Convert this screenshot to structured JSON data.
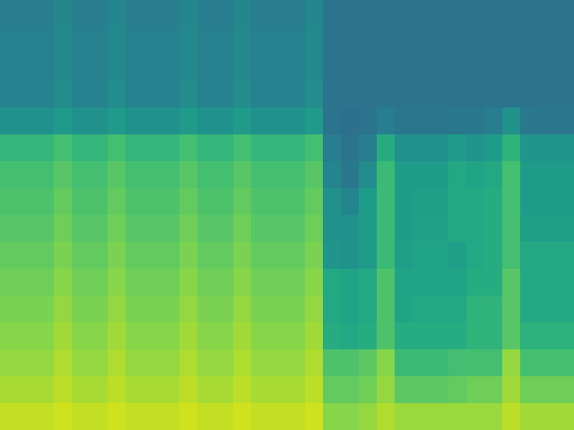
{
  "chart_data": {
    "type": "heatmap",
    "color": "Viridis",
    "tick_labels": false,
    "zlim": [
      0,
      1
    ],
    "cells": [
      [
        0.42,
        0.42,
        0.42,
        0.46,
        0.42,
        0.42,
        0.46,
        0.42,
        0.42,
        0.42,
        0.46,
        0.42,
        0.42,
        0.46,
        0.42,
        0.42,
        0.42,
        0.46,
        0.38,
        0.38,
        0.38,
        0.38,
        0.38,
        0.38,
        0.38,
        0.38,
        0.38,
        0.38,
        0.38,
        0.38,
        0.38,
        0.38
      ],
      [
        0.43,
        0.43,
        0.43,
        0.47,
        0.43,
        0.43,
        0.47,
        0.43,
        0.43,
        0.43,
        0.47,
        0.43,
        0.43,
        0.47,
        0.43,
        0.43,
        0.43,
        0.47,
        0.38,
        0.38,
        0.38,
        0.38,
        0.38,
        0.38,
        0.38,
        0.38,
        0.38,
        0.38,
        0.38,
        0.38,
        0.38,
        0.38
      ],
      [
        0.43,
        0.43,
        0.43,
        0.47,
        0.43,
        0.43,
        0.47,
        0.43,
        0.43,
        0.43,
        0.47,
        0.43,
        0.43,
        0.47,
        0.43,
        0.43,
        0.43,
        0.47,
        0.38,
        0.38,
        0.38,
        0.38,
        0.38,
        0.38,
        0.38,
        0.38,
        0.38,
        0.38,
        0.38,
        0.38,
        0.38,
        0.38
      ],
      [
        0.44,
        0.44,
        0.44,
        0.48,
        0.44,
        0.44,
        0.48,
        0.44,
        0.44,
        0.44,
        0.48,
        0.44,
        0.44,
        0.48,
        0.44,
        0.44,
        0.44,
        0.48,
        0.38,
        0.38,
        0.38,
        0.38,
        0.38,
        0.38,
        0.38,
        0.38,
        0.38,
        0.38,
        0.38,
        0.38,
        0.38,
        0.38
      ],
      [
        0.5,
        0.5,
        0.5,
        0.54,
        0.5,
        0.5,
        0.54,
        0.5,
        0.5,
        0.5,
        0.54,
        0.5,
        0.5,
        0.54,
        0.5,
        0.5,
        0.5,
        0.54,
        0.38,
        0.37,
        0.38,
        0.42,
        0.39,
        0.39,
        0.39,
        0.4,
        0.4,
        0.42,
        0.5,
        0.4,
        0.39,
        0.39
      ],
      [
        0.66,
        0.66,
        0.66,
        0.7,
        0.66,
        0.66,
        0.7,
        0.66,
        0.66,
        0.66,
        0.7,
        0.66,
        0.66,
        0.7,
        0.66,
        0.66,
        0.66,
        0.7,
        0.42,
        0.38,
        0.42,
        0.62,
        0.5,
        0.5,
        0.5,
        0.55,
        0.52,
        0.55,
        0.65,
        0.52,
        0.52,
        0.52
      ],
      [
        0.7,
        0.7,
        0.7,
        0.74,
        0.7,
        0.7,
        0.74,
        0.7,
        0.7,
        0.7,
        0.74,
        0.7,
        0.7,
        0.74,
        0.7,
        0.7,
        0.7,
        0.74,
        0.45,
        0.4,
        0.48,
        0.68,
        0.55,
        0.55,
        0.55,
        0.6,
        0.58,
        0.6,
        0.7,
        0.55,
        0.55,
        0.55
      ],
      [
        0.72,
        0.72,
        0.72,
        0.76,
        0.72,
        0.72,
        0.76,
        0.72,
        0.72,
        0.72,
        0.76,
        0.72,
        0.72,
        0.76,
        0.72,
        0.72,
        0.72,
        0.76,
        0.5,
        0.45,
        0.55,
        0.68,
        0.55,
        0.56,
        0.56,
        0.6,
        0.6,
        0.62,
        0.7,
        0.55,
        0.55,
        0.55
      ],
      [
        0.74,
        0.74,
        0.74,
        0.78,
        0.74,
        0.74,
        0.78,
        0.74,
        0.74,
        0.74,
        0.78,
        0.74,
        0.74,
        0.78,
        0.74,
        0.74,
        0.74,
        0.78,
        0.5,
        0.5,
        0.55,
        0.68,
        0.55,
        0.57,
        0.57,
        0.6,
        0.6,
        0.62,
        0.7,
        0.56,
        0.56,
        0.56
      ],
      [
        0.76,
        0.76,
        0.76,
        0.8,
        0.76,
        0.76,
        0.8,
        0.76,
        0.76,
        0.76,
        0.8,
        0.76,
        0.76,
        0.8,
        0.76,
        0.76,
        0.76,
        0.8,
        0.52,
        0.5,
        0.55,
        0.68,
        0.56,
        0.58,
        0.58,
        0.56,
        0.6,
        0.62,
        0.7,
        0.6,
        0.6,
        0.6
      ],
      [
        0.78,
        0.78,
        0.78,
        0.82,
        0.78,
        0.78,
        0.82,
        0.78,
        0.78,
        0.78,
        0.82,
        0.78,
        0.78,
        0.82,
        0.78,
        0.78,
        0.78,
        0.82,
        0.6,
        0.58,
        0.6,
        0.72,
        0.58,
        0.58,
        0.58,
        0.58,
        0.62,
        0.62,
        0.74,
        0.6,
        0.6,
        0.6
      ],
      [
        0.8,
        0.8,
        0.8,
        0.84,
        0.8,
        0.8,
        0.84,
        0.8,
        0.8,
        0.8,
        0.84,
        0.8,
        0.8,
        0.84,
        0.8,
        0.8,
        0.8,
        0.84,
        0.6,
        0.58,
        0.6,
        0.72,
        0.58,
        0.6,
        0.6,
        0.6,
        0.65,
        0.65,
        0.74,
        0.6,
        0.6,
        0.6
      ],
      [
        0.82,
        0.82,
        0.82,
        0.86,
        0.82,
        0.82,
        0.86,
        0.82,
        0.82,
        0.82,
        0.86,
        0.82,
        0.82,
        0.86,
        0.82,
        0.82,
        0.82,
        0.86,
        0.62,
        0.6,
        0.62,
        0.72,
        0.62,
        0.62,
        0.62,
        0.62,
        0.65,
        0.65,
        0.74,
        0.64,
        0.64,
        0.64
      ],
      [
        0.84,
        0.84,
        0.84,
        0.88,
        0.84,
        0.84,
        0.88,
        0.84,
        0.84,
        0.84,
        0.88,
        0.84,
        0.84,
        0.88,
        0.84,
        0.84,
        0.84,
        0.88,
        0.72,
        0.72,
        0.75,
        0.82,
        0.68,
        0.68,
        0.68,
        0.7,
        0.7,
        0.7,
        0.84,
        0.7,
        0.7,
        0.7
      ],
      [
        0.87,
        0.87,
        0.87,
        0.9,
        0.87,
        0.87,
        0.9,
        0.87,
        0.87,
        0.87,
        0.9,
        0.87,
        0.87,
        0.9,
        0.87,
        0.87,
        0.87,
        0.9,
        0.76,
        0.76,
        0.78,
        0.84,
        0.75,
        0.75,
        0.75,
        0.76,
        0.78,
        0.78,
        0.86,
        0.78,
        0.78,
        0.78
      ],
      [
        0.91,
        0.91,
        0.91,
        0.93,
        0.91,
        0.91,
        0.93,
        0.91,
        0.91,
        0.91,
        0.93,
        0.91,
        0.91,
        0.93,
        0.91,
        0.91,
        0.91,
        0.93,
        0.82,
        0.82,
        0.84,
        0.88,
        0.85,
        0.85,
        0.85,
        0.85,
        0.85,
        0.85,
        0.9,
        0.86,
        0.86,
        0.86
      ]
    ]
  }
}
